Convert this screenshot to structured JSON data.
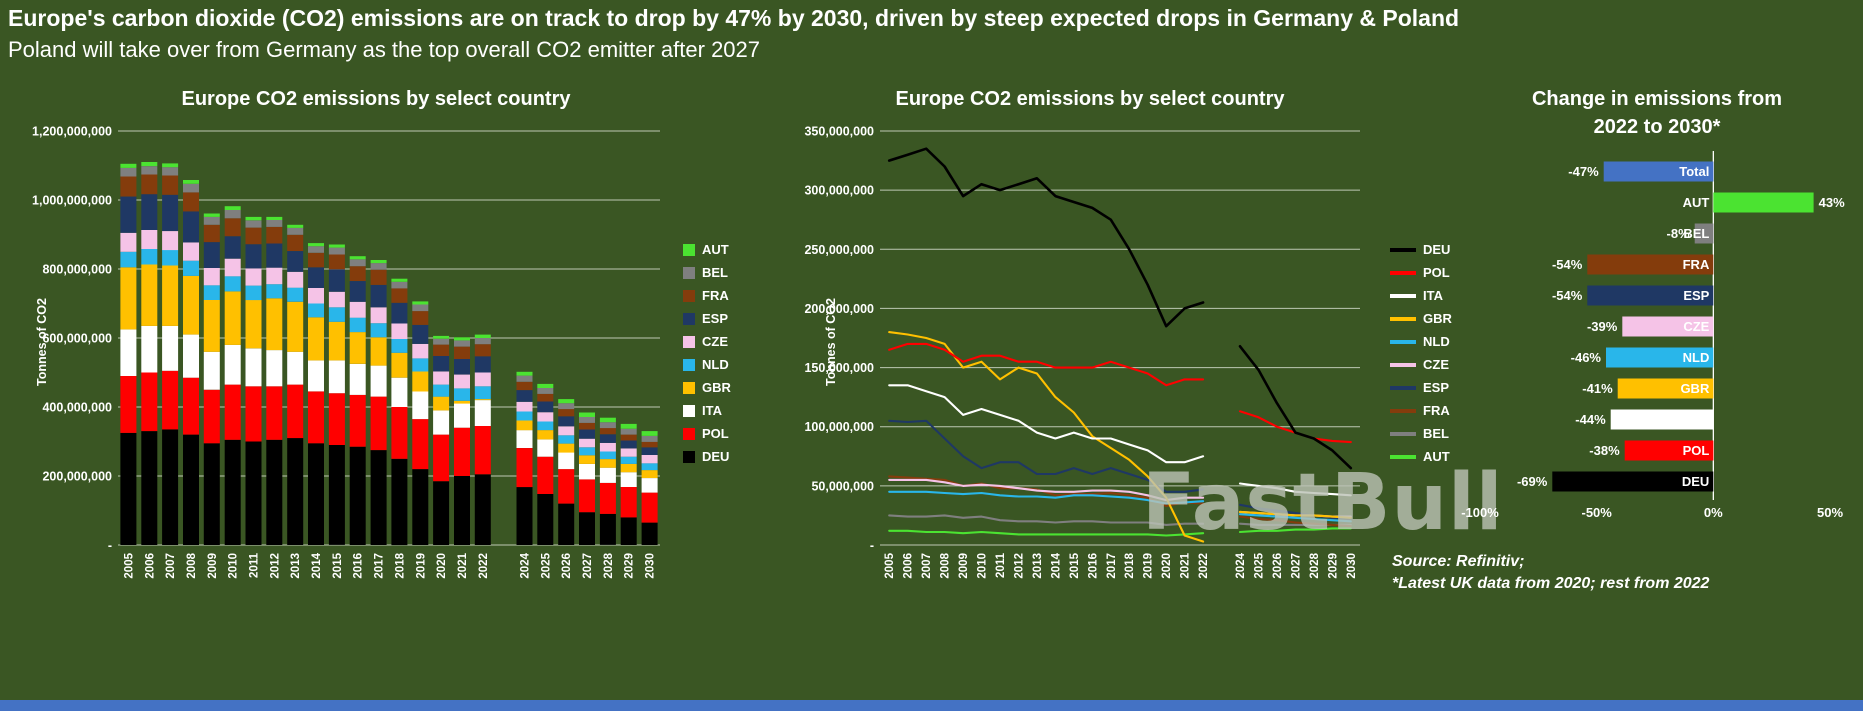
{
  "header": {
    "title": "Europe's carbon dioxide (CO2) emissions are on track to drop by 47% by 2030, driven by steep expected drops in Germany & Poland",
    "subtitle": "Poland will take over from Germany as the top overall CO2 emitter after 2027"
  },
  "watermark": "FastBull",
  "source": {
    "line1": "Source: Refinitiv;",
    "line2": "*Latest UK data from 2020; rest from 2022"
  },
  "colors": {
    "background": "#3a5623",
    "bottom_strip": "#4472c4",
    "gridline": "#e9efe4"
  },
  "chart_data": [
    {
      "type": "bar",
      "stacked": true,
      "title": "Europe CO2 emissions by select country",
      "ylabel": "Tonnes of CO2",
      "value_unit": "million tonnes of CO2",
      "ylim": [
        0,
        1200
      ],
      "ytick_values": [
        0,
        200,
        400,
        600,
        800,
        1000,
        1200
      ],
      "ytick_labels": [
        "-",
        "200,000,000",
        "400,000,000",
        "600,000,000",
        "800,000,000",
        "1,000,000,000",
        "1,200,000,000"
      ],
      "categories": [
        "2005",
        "2006",
        "2007",
        "2008",
        "2009",
        "2010",
        "2011",
        "2012",
        "2013",
        "2014",
        "2015",
        "2016",
        "2017",
        "2018",
        "2019",
        "2020",
        "2021",
        "2022",
        "2024",
        "2025",
        "2026",
        "2027",
        "2028",
        "2029",
        "2030"
      ],
      "gap_before_index": 18,
      "stack_order": [
        "DEU",
        "POL",
        "ITA",
        "GBR",
        "NLD",
        "CZE",
        "ESP",
        "FRA",
        "BEL",
        "AUT"
      ],
      "legend_order": [
        "AUT",
        "BEL",
        "FRA",
        "ESP",
        "CZE",
        "NLD",
        "GBR",
        "ITA",
        "POL",
        "DEU"
      ],
      "series": [
        {
          "name": "DEU",
          "color": "#000000",
          "values": [
            325,
            330,
            335,
            320,
            295,
            305,
            300,
            305,
            310,
            295,
            290,
            285,
            275,
            250,
            220,
            185,
            200,
            205,
            168,
            148,
            120,
            95,
            90,
            80,
            65
          ]
        },
        {
          "name": "POL",
          "color": "#ff0000",
          "values": [
            165,
            170,
            170,
            165,
            155,
            160,
            160,
            155,
            155,
            150,
            150,
            150,
            155,
            150,
            145,
            135,
            140,
            140,
            113,
            108,
            100,
            95,
            90,
            88,
            87
          ]
        },
        {
          "name": "ITA",
          "color": "#ffffff",
          "values": [
            135,
            135,
            130,
            125,
            110,
            115,
            110,
            105,
            95,
            90,
            95,
            90,
            90,
            85,
            80,
            70,
            70,
            75,
            52,
            50,
            48,
            45,
            44,
            43,
            42
          ]
        },
        {
          "name": "GBR",
          "color": "#ffc000",
          "values": [
            180,
            178,
            175,
            170,
            150,
            155,
            140,
            150,
            145,
            125,
            112,
            92,
            82,
            72,
            58,
            40,
            8,
            3,
            28,
            27,
            26,
            25,
            25,
            24,
            23
          ]
        },
        {
          "name": "NLD",
          "color": "#29b6ea",
          "values": [
            45,
            45,
            45,
            44,
            43,
            44,
            42,
            41,
            41,
            40,
            42,
            42,
            41,
            40,
            38,
            35,
            36,
            37,
            26,
            25,
            24,
            23,
            22,
            21,
            20
          ]
        },
        {
          "name": "CZE",
          "color": "#f5c3e7",
          "values": [
            55,
            55,
            55,
            53,
            50,
            51,
            50,
            48,
            46,
            45,
            45,
            46,
            46,
            45,
            42,
            38,
            40,
            40,
            28,
            27,
            26,
            25,
            25,
            24,
            24
          ]
        },
        {
          "name": "ESP",
          "color": "#1f3864",
          "values": [
            105,
            104,
            105,
            90,
            75,
            65,
            70,
            70,
            60,
            60,
            65,
            60,
            65,
            60,
            55,
            45,
            45,
            47,
            34,
            31,
            29,
            27,
            25,
            23,
            22
          ]
        },
        {
          "name": "FRA",
          "color": "#843c0c",
          "values": [
            58,
            57,
            56,
            55,
            50,
            52,
            48,
            48,
            47,
            42,
            43,
            43,
            44,
            42,
            40,
            33,
            36,
            35,
            24,
            22,
            21,
            19,
            18,
            17,
            16
          ]
        },
        {
          "name": "BEL",
          "color": "#7f7f7f",
          "values": [
            25,
            24,
            24,
            25,
            23,
            24,
            21,
            20,
            20,
            19,
            20,
            20,
            19,
            19,
            19,
            17,
            18,
            18,
            18,
            17,
            17,
            17,
            17,
            17,
            17
          ]
        },
        {
          "name": "AUT",
          "color": "#4be331",
          "values": [
            12,
            12,
            11,
            11,
            10,
            11,
            10,
            9,
            9,
            9,
            9,
            9,
            9,
            9,
            9,
            8,
            9,
            10,
            11,
            12,
            12,
            13,
            13,
            14,
            14
          ]
        }
      ]
    },
    {
      "type": "line",
      "title": "Europe CO2 emissions by select country",
      "ylabel": "Tonnes of CO2",
      "value_unit": "million tonnes of CO2",
      "ylim": [
        0,
        350
      ],
      "ytick_values": [
        0,
        50,
        100,
        150,
        200,
        250,
        300,
        350
      ],
      "ytick_labels": [
        "-",
        "50,000,000",
        "100,000,000",
        "150,000,000",
        "200,000,000",
        "250,000,000",
        "300,000,000",
        "350,000,000"
      ],
      "categories_ref": 0,
      "series_ref": 0,
      "series_note": "Plots the identical country series and years as chart_data[0]; 2023 is missing (gap between 2022 and 2024)",
      "legend_order": [
        "DEU",
        "POL",
        "ITA",
        "GBR",
        "NLD",
        "CZE",
        "ESP",
        "FRA",
        "BEL",
        "AUT"
      ]
    },
    {
      "type": "bar",
      "orientation": "horizontal",
      "title": "Change in emissions from 2022 to 2030*",
      "title_lines": [
        "Change in emissions from",
        "2022 to 2030*"
      ],
      "xlim": [
        -100,
        50
      ],
      "xtick_values": [
        -100,
        -50,
        0,
        50
      ],
      "xtick_labels": [
        "-100%",
        "-50%",
        "0%",
        "50%"
      ],
      "bars": [
        {
          "label": "Total",
          "value": -47,
          "value_label": "-47%",
          "color": "#4472c4",
          "name_color": "#1f3864"
        },
        {
          "label": "AUT",
          "value": 43,
          "value_label": "43%",
          "color": "#4be331",
          "name_color": "#ffffff"
        },
        {
          "label": "BEL",
          "value": -8,
          "value_label": "-8%",
          "color": "#7f7f7f",
          "name_color": "#a6a6a6"
        },
        {
          "label": "FRA",
          "value": -54,
          "value_label": "-54%",
          "color": "#843c0c",
          "name_color": "#431e06"
        },
        {
          "label": "ESP",
          "value": -54,
          "value_label": "-54%",
          "color": "#1f3864",
          "name_color": "#122142"
        },
        {
          "label": "CZE",
          "value": -39,
          "value_label": "-39%",
          "color": "#f5c3e7",
          "name_color": "#b2609c"
        },
        {
          "label": "NLD",
          "value": -46,
          "value_label": "-46%",
          "color": "#29b6ea",
          "name_color": "#0e6d9e"
        },
        {
          "label": "GBR",
          "value": -41,
          "value_label": "-41%",
          "color": "#ffc000",
          "name_color": "#7f6000"
        },
        {
          "label": "ITA",
          "value": -44,
          "value_label": "-44%",
          "color": "#ffffff",
          "name_color": "#8c8c8c"
        },
        {
          "label": "POL",
          "value": -38,
          "value_label": "-38%",
          "color": "#ff0000",
          "name_color": "#7f0000"
        },
        {
          "label": "DEU",
          "value": -69,
          "value_label": "-69%",
          "color": "#000000",
          "name_color": "#9a9a9a"
        }
      ]
    }
  ]
}
